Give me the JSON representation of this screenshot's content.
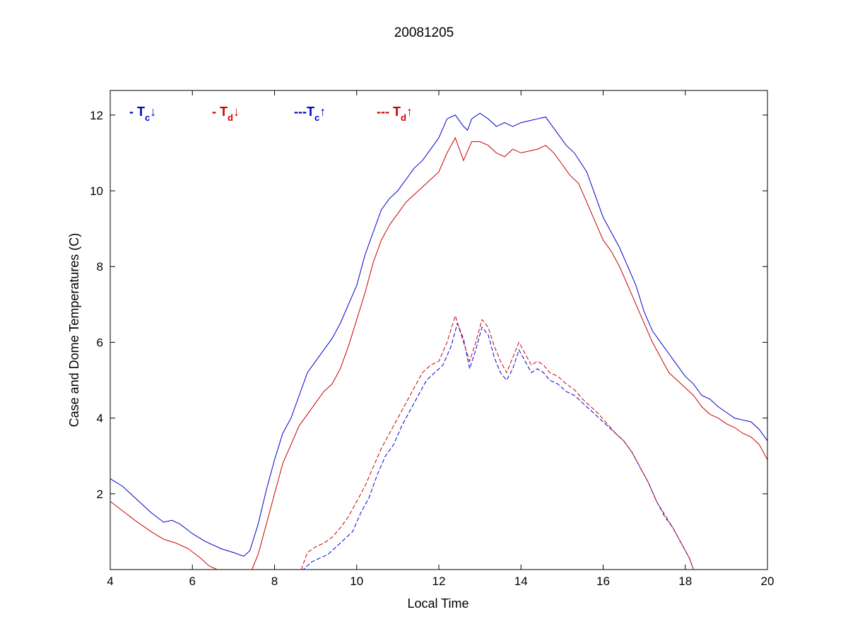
{
  "chart_data": {
    "type": "line",
    "title": "20081205",
    "xlabel": "Local Time",
    "ylabel": "Case and Dome Temperatures (C)",
    "xlim": [
      4,
      20
    ],
    "ylim": [
      0,
      12.65
    ],
    "xticks": [
      4,
      6,
      8,
      10,
      12,
      14,
      16,
      18,
      20
    ],
    "yticks": [
      2,
      4,
      6,
      8,
      10,
      12
    ],
    "grid": false,
    "legend_position": "top-left-inside",
    "legend": [
      {
        "prefix": "- T",
        "sub": "c",
        "arrow": "↓",
        "color": "#0000cc"
      },
      {
        "prefix": "- T",
        "sub": "d",
        "arrow": "↓",
        "color": "#cc0000"
      },
      {
        "prefix": "---T",
        "sub": "c",
        "arrow": "↑",
        "color": "#0000cc"
      },
      {
        "prefix": "--- T",
        "sub": "d",
        "arrow": "↑",
        "color": "#cc0000"
      }
    ],
    "series": [
      {
        "color": "#0000cc",
        "dash": "solid",
        "x": [
          4.0,
          4.3,
          4.6,
          5.0,
          5.3,
          5.5,
          5.7,
          6.0,
          6.3,
          6.7,
          7.0,
          7.25,
          7.4,
          7.6,
          7.8,
          8.0,
          8.2,
          8.4,
          8.6,
          8.8,
          9.0,
          9.2,
          9.4,
          9.6,
          9.8,
          10.0,
          10.2,
          10.4,
          10.6,
          10.8,
          11.0,
          11.2,
          11.4,
          11.6,
          11.8,
          12.0,
          12.2,
          12.4,
          12.6,
          12.7,
          12.8,
          13.0,
          13.2,
          13.4,
          13.6,
          13.8,
          14.0,
          14.2,
          14.4,
          14.6,
          14.7,
          14.9,
          15.1,
          15.3,
          15.6,
          15.8,
          16.0,
          16.2,
          16.4,
          16.6,
          16.8,
          17.0,
          17.2,
          17.4,
          17.6,
          17.8,
          18.0,
          18.2,
          18.4,
          18.6,
          18.8,
          19.0,
          19.2,
          19.4,
          19.6,
          19.8,
          20.0
        ],
        "y": [
          2.4,
          2.2,
          1.9,
          1.5,
          1.25,
          1.3,
          1.2,
          0.95,
          0.75,
          0.55,
          0.45,
          0.35,
          0.5,
          1.2,
          2.1,
          2.9,
          3.6,
          4.0,
          4.6,
          5.2,
          5.5,
          5.8,
          6.1,
          6.5,
          7.0,
          7.5,
          8.3,
          8.9,
          9.5,
          9.8,
          10.0,
          10.3,
          10.6,
          10.8,
          11.1,
          11.4,
          11.9,
          12.0,
          11.7,
          11.6,
          11.9,
          12.05,
          11.9,
          11.7,
          11.8,
          11.7,
          11.8,
          11.85,
          11.9,
          11.95,
          11.8,
          11.5,
          11.2,
          11.0,
          10.5,
          9.9,
          9.3,
          8.9,
          8.5,
          8.0,
          7.5,
          6.8,
          6.3,
          6.0,
          5.7,
          5.4,
          5.1,
          4.9,
          4.6,
          4.5,
          4.3,
          4.15,
          4.0,
          3.95,
          3.9,
          3.7,
          3.4
        ]
      },
      {
        "color": "#cc0000",
        "dash": "solid",
        "x": [
          4.0,
          4.3,
          4.6,
          5.0,
          5.3,
          5.6,
          5.9,
          6.2,
          6.4,
          6.6,
          6.8,
          7.0,
          7.2,
          7.45,
          7.6,
          7.8,
          8.0,
          8.2,
          8.4,
          8.6,
          8.8,
          9.0,
          9.2,
          9.4,
          9.6,
          9.8,
          10.0,
          10.2,
          10.4,
          10.6,
          10.8,
          11.0,
          11.2,
          11.4,
          11.6,
          11.8,
          12.0,
          12.2,
          12.4,
          12.6,
          12.8,
          13.0,
          13.2,
          13.4,
          13.6,
          13.8,
          14.0,
          14.2,
          14.4,
          14.6,
          14.8,
          15.0,
          15.2,
          15.4,
          15.6,
          15.8,
          16.0,
          16.2,
          16.4,
          16.6,
          16.8,
          17.0,
          17.2,
          17.4,
          17.6,
          17.8,
          18.0,
          18.2,
          18.4,
          18.6,
          18.8,
          19.0,
          19.2,
          19.4,
          19.6,
          19.8,
          20.0
        ],
        "y": [
          1.8,
          1.55,
          1.3,
          1.0,
          0.8,
          0.7,
          0.55,
          0.3,
          0.1,
          0.0,
          0.0,
          0.0,
          0.0,
          0.0,
          0.4,
          1.2,
          2.0,
          2.8,
          3.3,
          3.8,
          4.1,
          4.4,
          4.7,
          4.9,
          5.3,
          5.9,
          6.6,
          7.3,
          8.1,
          8.7,
          9.1,
          9.4,
          9.7,
          9.9,
          10.1,
          10.3,
          10.5,
          11.0,
          11.4,
          10.8,
          11.3,
          11.3,
          11.2,
          11.0,
          10.9,
          11.1,
          11.0,
          11.05,
          11.1,
          11.2,
          11.0,
          10.7,
          10.4,
          10.2,
          9.7,
          9.2,
          8.7,
          8.4,
          8.0,
          7.5,
          7.0,
          6.5,
          6.0,
          5.6,
          5.2,
          5.0,
          4.8,
          4.6,
          4.3,
          4.1,
          4.0,
          3.85,
          3.75,
          3.6,
          3.5,
          3.3,
          2.9
        ]
      },
      {
        "color": "#0000cc",
        "dash": "dashed",
        "x": [
          4.0,
          5.0,
          6.0,
          7.0,
          8.0,
          8.7,
          8.9,
          9.1,
          9.3,
          9.5,
          9.7,
          9.9,
          10.1,
          10.3,
          10.5,
          10.7,
          10.9,
          11.1,
          11.3,
          11.5,
          11.7,
          11.9,
          12.1,
          12.3,
          12.45,
          12.6,
          12.75,
          12.9,
          13.05,
          13.2,
          13.35,
          13.5,
          13.65,
          13.8,
          13.95,
          14.1,
          14.25,
          14.4,
          14.55,
          14.7,
          14.9,
          15.1,
          15.3,
          15.5,
          15.7,
          15.9,
          16.1,
          16.3,
          16.5,
          16.7,
          16.9,
          17.1,
          17.3,
          17.5,
          17.7,
          17.9,
          18.1,
          18.2
        ],
        "y": [
          0.0,
          0.0,
          0.0,
          0.0,
          0.0,
          0.0,
          0.2,
          0.3,
          0.4,
          0.6,
          0.8,
          1.0,
          1.5,
          1.9,
          2.5,
          3.0,
          3.3,
          3.8,
          4.2,
          4.6,
          5.0,
          5.2,
          5.4,
          5.9,
          6.5,
          6.1,
          5.3,
          5.8,
          6.4,
          6.2,
          5.6,
          5.2,
          5.0,
          5.3,
          5.8,
          5.5,
          5.2,
          5.3,
          5.2,
          5.0,
          4.9,
          4.7,
          4.6,
          4.4,
          4.2,
          4.0,
          3.8,
          3.6,
          3.4,
          3.1,
          2.7,
          2.3,
          1.8,
          1.4,
          1.1,
          0.7,
          0.3,
          0.0
        ]
      },
      {
        "color": "#cc0000",
        "dash": "dashed",
        "x": [
          4.0,
          5.0,
          6.0,
          7.0,
          8.0,
          8.65,
          8.8,
          9.0,
          9.2,
          9.4,
          9.6,
          9.8,
          10.0,
          10.2,
          10.4,
          10.6,
          10.8,
          11.0,
          11.2,
          11.4,
          11.6,
          11.8,
          12.0,
          12.2,
          12.4,
          12.6,
          12.75,
          12.9,
          13.05,
          13.2,
          13.35,
          13.5,
          13.65,
          13.8,
          13.95,
          14.1,
          14.25,
          14.4,
          14.55,
          14.7,
          14.9,
          15.1,
          15.3,
          15.5,
          15.7,
          15.9,
          16.1,
          16.3,
          16.5,
          16.7,
          16.9,
          17.1,
          17.3,
          17.5,
          17.7,
          17.9,
          18.1,
          18.2
        ],
        "y": [
          0.0,
          0.0,
          0.0,
          0.0,
          0.0,
          0.0,
          0.45,
          0.6,
          0.7,
          0.85,
          1.1,
          1.4,
          1.8,
          2.2,
          2.7,
          3.2,
          3.6,
          4.0,
          4.4,
          4.8,
          5.2,
          5.4,
          5.5,
          6.0,
          6.7,
          6.0,
          5.5,
          6.0,
          6.6,
          6.4,
          5.9,
          5.5,
          5.2,
          5.6,
          6.0,
          5.7,
          5.4,
          5.5,
          5.4,
          5.2,
          5.1,
          4.9,
          4.75,
          4.5,
          4.3,
          4.1,
          3.85,
          3.6,
          3.4,
          3.1,
          2.7,
          2.3,
          1.8,
          1.45,
          1.1,
          0.7,
          0.3,
          0.0
        ]
      }
    ]
  }
}
